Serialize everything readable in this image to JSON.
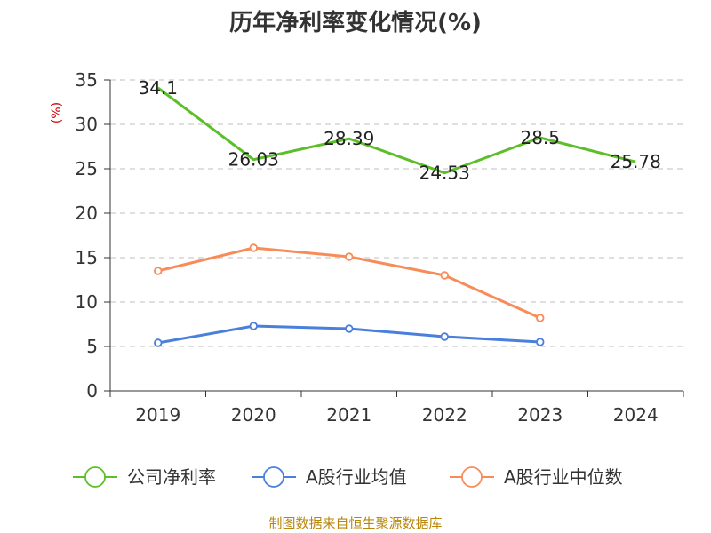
{
  "chart_data": {
    "type": "line",
    "title": "历年净利率变化情况(%)",
    "ylabel": "(%)",
    "xlabel": "",
    "categories": [
      "2019",
      "2020",
      "2021",
      "2022",
      "2023",
      "2024"
    ],
    "ylim": [
      0,
      35
    ],
    "yticks": [
      0,
      5,
      10,
      15,
      20,
      25,
      30,
      35
    ],
    "grid": true,
    "legend_position": "bottom",
    "series": [
      {
        "name": "公司净利率",
        "color": "#5cbf2a",
        "values": [
          34.1,
          26.03,
          28.39,
          24.53,
          28.5,
          25.78
        ],
        "labels": [
          "34.1",
          "26.03",
          "28.39",
          "24.53",
          "28.5",
          "25.78"
        ],
        "markers": false
      },
      {
        "name": "A股行业均值",
        "color": "#4a7fdc",
        "values": [
          5.4,
          7.3,
          7.0,
          6.1,
          5.5,
          null
        ],
        "markers": true
      },
      {
        "name": "A股行业中位数",
        "color": "#f78c59",
        "values": [
          13.5,
          16.1,
          15.1,
          13.0,
          8.2,
          null
        ],
        "markers": true
      }
    ]
  },
  "footer": {
    "source": "制图数据来自恒生聚源数据库"
  }
}
